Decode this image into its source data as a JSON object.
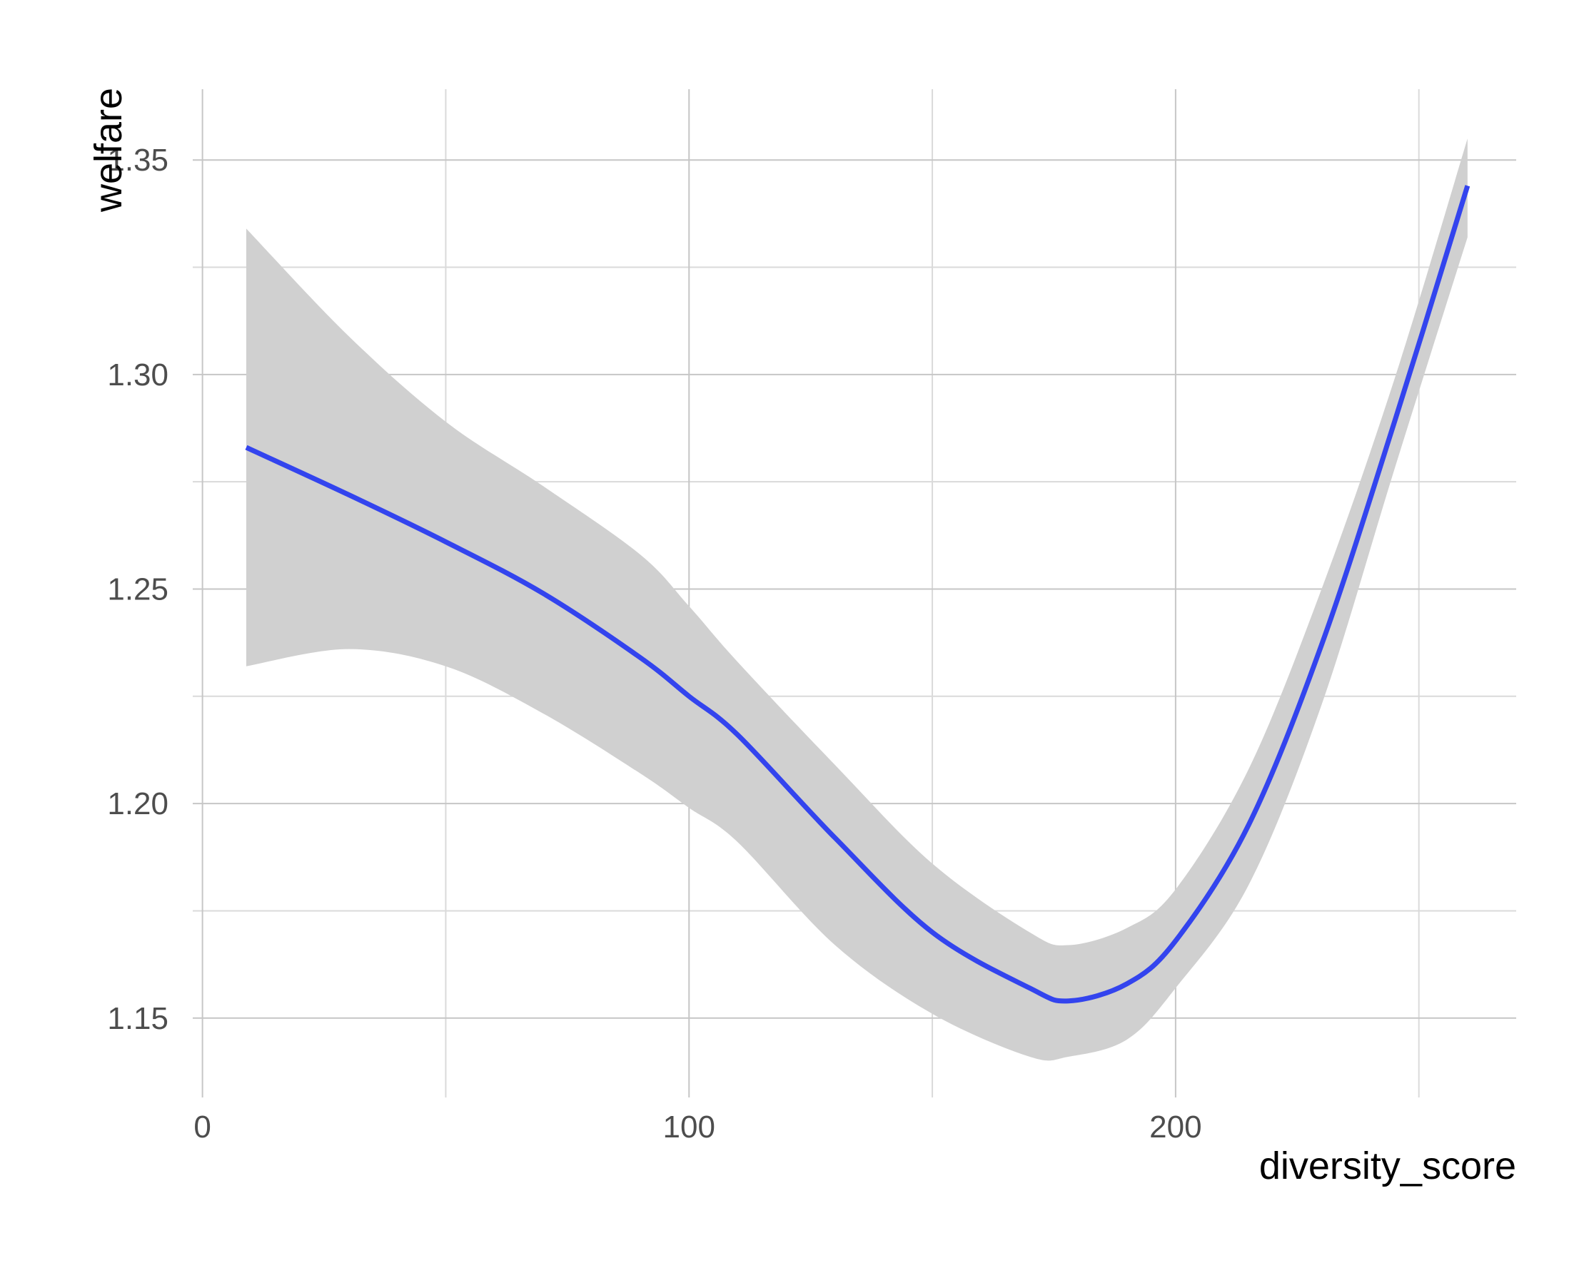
{
  "chart_data": {
    "type": "line",
    "xlabel": "diversity_score",
    "ylabel": "welfare",
    "xlim": [
      -2,
      270
    ],
    "ylim": [
      1.1315,
      1.3665
    ],
    "x_ticks": [
      0,
      100,
      200
    ],
    "x_tick_labels": [
      "0",
      "100",
      "200"
    ],
    "x_minor_ticks": [
      50,
      150,
      250
    ],
    "y_ticks": [
      1.15,
      1.2,
      1.25,
      1.3,
      1.35
    ],
    "y_tick_labels": [
      "1.15",
      "1.20",
      "1.25",
      "1.30",
      "1.35"
    ],
    "y_minor_ticks": [
      1.175,
      1.225,
      1.275,
      1.325
    ],
    "grid": true,
    "legend": "none",
    "series": [
      {
        "style": "smooth fit with confidence band",
        "color": "#3344ee",
        "x": [
          9,
          30,
          50,
          70,
          90,
          100,
          110,
          130,
          150,
          170,
          178,
          190,
          200,
          215,
          230,
          245,
          260
        ],
        "y": [
          1.283,
          1.272,
          1.261,
          1.249,
          1.234,
          1.225,
          1.216,
          1.192,
          1.17,
          1.157,
          1.154,
          1.158,
          1.168,
          1.195,
          1.237,
          1.289,
          1.344
        ],
        "lower": [
          1.232,
          1.236,
          1.232,
          1.221,
          1.207,
          1.199,
          1.191,
          1.167,
          1.151,
          1.141,
          1.141,
          1.145,
          1.157,
          1.181,
          1.223,
          1.278,
          1.332
        ],
        "upper": [
          1.334,
          1.309,
          1.289,
          1.274,
          1.258,
          1.246,
          1.233,
          1.209,
          1.186,
          1.17,
          1.167,
          1.171,
          1.18,
          1.208,
          1.25,
          1.299,
          1.355
        ]
      }
    ],
    "colors": {
      "band": "#d0d0d0",
      "line": "#3344ee",
      "grid_major": "#c6c6c6",
      "grid_minor": "#dadada",
      "tick_text": "#4d4d4d",
      "axis_title": "#000000"
    }
  }
}
